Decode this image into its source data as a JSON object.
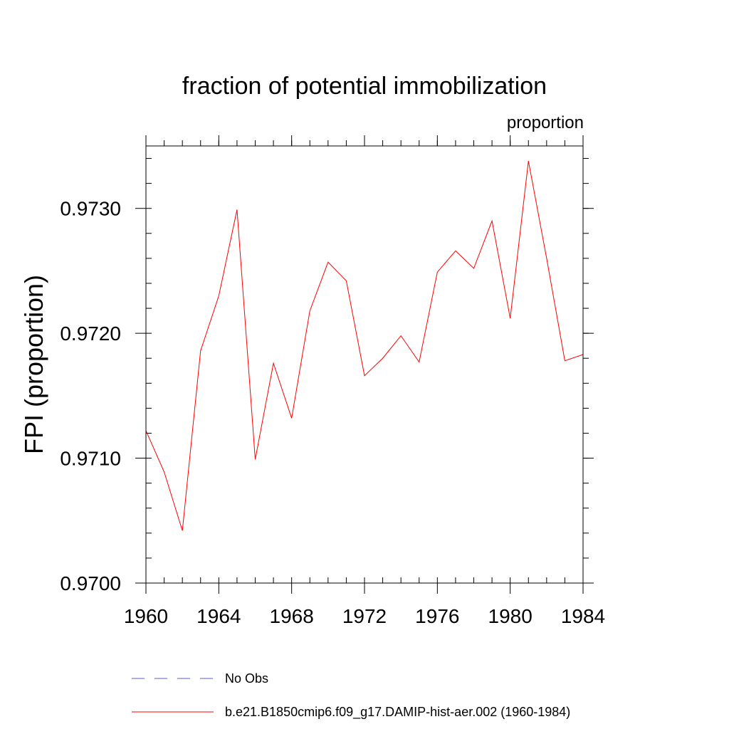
{
  "chart_data": {
    "type": "line",
    "title": "fraction of potential immobilization",
    "subtitle": "proportion",
    "xlabel": "",
    "ylabel": "FPI  (proportion)",
    "xlim": [
      1960,
      1984
    ],
    "ylim": [
      0.97,
      0.9735
    ],
    "x_ticks": [
      1960,
      1964,
      1968,
      1972,
      1976,
      1980,
      1984
    ],
    "x_tick_labels": [
      "1960",
      "1964",
      "1968",
      "1972",
      "1976",
      "1980",
      "1984"
    ],
    "y_ticks": [
      0.97,
      0.971,
      0.972,
      0.973
    ],
    "y_tick_labels": [
      "0.9700",
      "0.9710",
      "0.9720",
      "0.9730"
    ],
    "y_minor_step": 0.0002,
    "x_minor_step": 1,
    "grid": false,
    "legend_position": "bottom",
    "series": [
      {
        "name": "No Obs",
        "color": "#5a5acd",
        "style": "dashed",
        "x": [],
        "y": []
      },
      {
        "name": "b.e21.B1850cmip6.f09_g17.DAMIP-hist-aer.002 (1960-1984)",
        "color": "#ff0000",
        "style": "solid",
        "x": [
          1960,
          1961,
          1962,
          1963,
          1964,
          1965,
          1966,
          1967,
          1968,
          1969,
          1970,
          1971,
          1972,
          1973,
          1974,
          1975,
          1976,
          1977,
          1978,
          1979,
          1980,
          1981,
          1982,
          1983,
          1984
        ],
        "y": [
          0.97122,
          0.97089,
          0.97042,
          0.97186,
          0.9723,
          0.97299,
          0.97099,
          0.97176,
          0.97132,
          0.97218,
          0.97257,
          0.97242,
          0.97166,
          0.9718,
          0.97198,
          0.97177,
          0.97249,
          0.97266,
          0.97252,
          0.9729,
          0.97212,
          0.97338,
          0.9726,
          0.97178,
          0.97183
        ]
      }
    ]
  }
}
